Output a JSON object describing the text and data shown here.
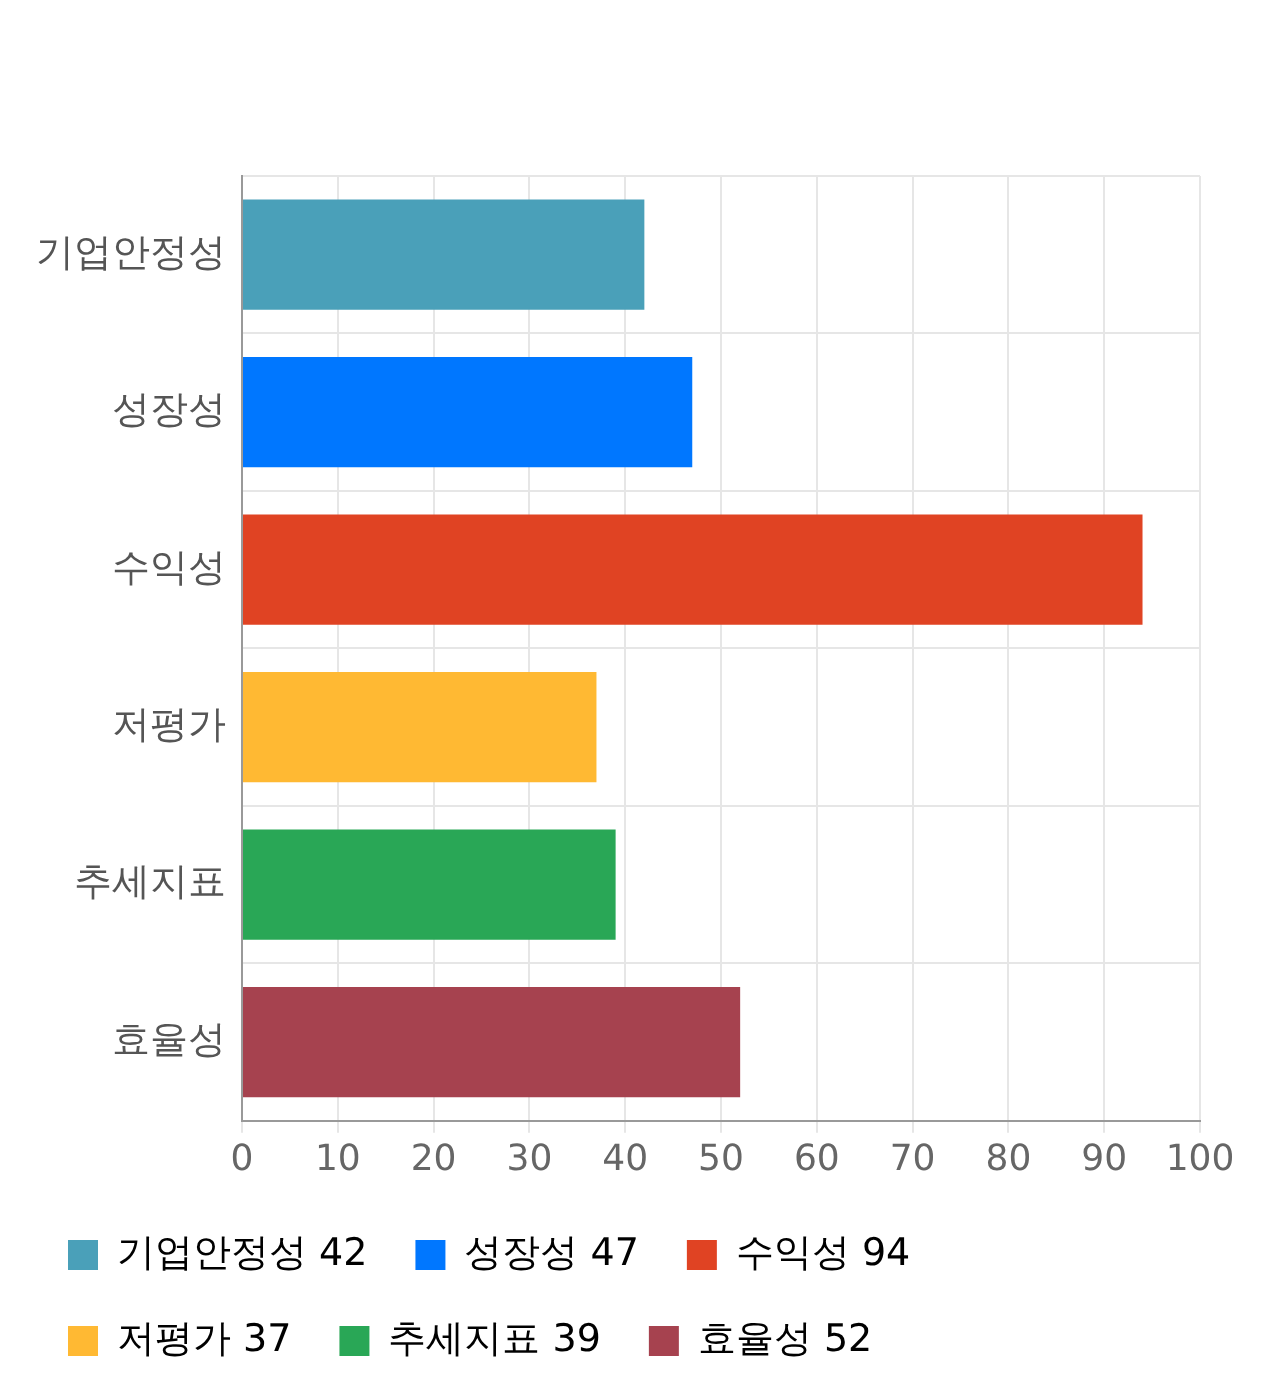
{
  "chart_data": {
    "type": "bar",
    "orientation": "horizontal",
    "stacked": true,
    "categories": [
      "기업안정성",
      "성장성",
      "수익성",
      "저평가",
      "추세지표",
      "효율성"
    ],
    "series": [
      {
        "name": "기업안정성 42",
        "color": "#4aa0b9",
        "values": [
          42,
          null,
          null,
          null,
          null,
          null
        ]
      },
      {
        "name": "성장성 47",
        "color": "#0077ff",
        "values": [
          null,
          47,
          null,
          null,
          null,
          null
        ]
      },
      {
        "name": "수익성 94",
        "color": "#e04323",
        "values": [
          null,
          null,
          94,
          null,
          null,
          null
        ]
      },
      {
        "name": "저평가 37",
        "color": "#ffb933",
        "values": [
          null,
          null,
          null,
          37,
          null,
          null
        ]
      },
      {
        "name": "추세지표 39",
        "color": "#29a756",
        "values": [
          null,
          null,
          null,
          null,
          39,
          null
        ]
      },
      {
        "name": "효율성 52",
        "color": "#a6424f",
        "values": [
          null,
          null,
          null,
          null,
          null,
          52
        ]
      }
    ],
    "xlim": [
      0,
      100
    ],
    "xticks": [
      0,
      10,
      20,
      30,
      40,
      50,
      60,
      70,
      80,
      90,
      100
    ],
    "grid": true,
    "legend": "bottom"
  }
}
